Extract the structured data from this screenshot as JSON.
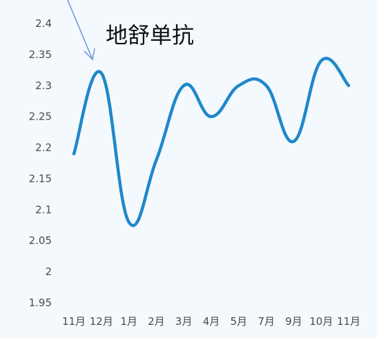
{
  "chart_data": {
    "type": "line",
    "title": "",
    "xlabel": "",
    "ylabel": "",
    "categories": [
      "11月",
      "12月",
      "1月",
      "2月",
      "3月",
      "4月",
      "5月",
      "7月",
      "9月",
      "10月",
      "11月"
    ],
    "series": [
      {
        "values": [
          2.19,
          2.32,
          2.08,
          2.18,
          2.3,
          2.25,
          2.3,
          2.3,
          2.21,
          2.34,
          2.3
        ]
      }
    ],
    "ylim": [
      1.95,
      2.4
    ],
    "yticks": [
      "1.95",
      "2",
      "2.05",
      "2.1",
      "2.15",
      "2.2",
      "2.25",
      "2.3",
      "2.35",
      "2.4"
    ],
    "grid": false,
    "smooth": true,
    "line_color": "#1f88c9",
    "annotation": {
      "text": "地舒单抗",
      "arrow_color": "#6f98dc",
      "points_to_category": "12月"
    }
  }
}
